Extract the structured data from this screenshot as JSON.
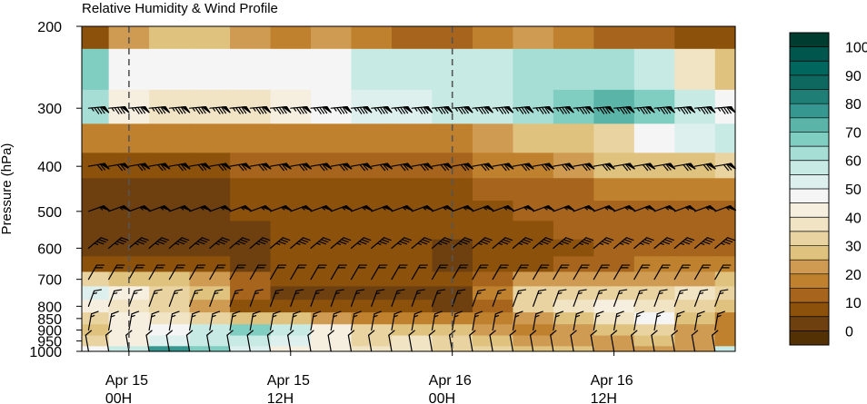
{
  "chart_data": {
    "type": "heatmap",
    "title": "Relative Humidity & Wind Profile",
    "ylabel": "Pressure (hPa)",
    "xlabel": "",
    "y_axis_scale": "log-pressure (inverted)",
    "y_ticks": [
      200,
      300,
      400,
      500,
      600,
      700,
      800,
      850,
      900,
      950,
      1000
    ],
    "x_ticks": [
      {
        "line1": "Apr 15",
        "line2": "00H"
      },
      {
        "line1": "Apr 15",
        "line2": "12H"
      },
      {
        "line1": "Apr 16",
        "line2": "00H"
      },
      {
        "line1": "Apr 16",
        "line2": "12H"
      }
    ],
    "x_range_hours": [
      -3.5,
      45
    ],
    "day_markers_hours": [
      0,
      24
    ],
    "pressure_levels": [
      200,
      250,
      300,
      350,
      400,
      450,
      500,
      550,
      600,
      650,
      700,
      750,
      800,
      850,
      900,
      950,
      1000
    ],
    "time_hours": [
      -3,
      0,
      3,
      6,
      9,
      12,
      15,
      18,
      21,
      24,
      27,
      30,
      33,
      36,
      39,
      42,
      45
    ],
    "rh_percent": [
      [
        5,
        20,
        25,
        25,
        20,
        15,
        20,
        15,
        10,
        10,
        15,
        20,
        15,
        10,
        10,
        5,
        5
      ],
      [
        65,
        45,
        45,
        45,
        45,
        45,
        45,
        55,
        55,
        55,
        55,
        60,
        60,
        60,
        55,
        35,
        25
      ],
      [
        60,
        40,
        35,
        35,
        35,
        40,
        45,
        50,
        50,
        55,
        55,
        60,
        65,
        70,
        65,
        55,
        45
      ],
      [
        15,
        15,
        15,
        15,
        15,
        15,
        15,
        15,
        15,
        15,
        20,
        25,
        25,
        30,
        45,
        50,
        55
      ],
      [
        5,
        5,
        5,
        5,
        10,
        10,
        10,
        10,
        10,
        10,
        15,
        15,
        20,
        25,
        25,
        25,
        30
      ],
      [
        0,
        0,
        0,
        0,
        5,
        5,
        5,
        5,
        5,
        5,
        10,
        10,
        10,
        15,
        15,
        15,
        15
      ],
      [
        0,
        0,
        0,
        0,
        5,
        5,
        5,
        5,
        5,
        5,
        5,
        10,
        10,
        10,
        10,
        10,
        10
      ],
      [
        0,
        0,
        0,
        0,
        0,
        5,
        5,
        5,
        5,
        5,
        5,
        5,
        10,
        10,
        10,
        10,
        10
      ],
      [
        0,
        0,
        0,
        0,
        0,
        5,
        5,
        5,
        5,
        0,
        5,
        5,
        5,
        10,
        10,
        10,
        10
      ],
      [
        5,
        5,
        5,
        5,
        0,
        5,
        5,
        5,
        5,
        0,
        5,
        5,
        10,
        10,
        15,
        15,
        15
      ],
      [
        30,
        25,
        25,
        20,
        10,
        5,
        5,
        5,
        5,
        5,
        10,
        20,
        20,
        20,
        20,
        20,
        25
      ],
      [
        50,
        40,
        30,
        25,
        10,
        0,
        0,
        0,
        0,
        0,
        15,
        30,
        30,
        30,
        30,
        35,
        30
      ],
      [
        40,
        35,
        30,
        20,
        5,
        5,
        5,
        5,
        5,
        0,
        10,
        30,
        35,
        40,
        35,
        30,
        25
      ],
      [
        30,
        40,
        35,
        30,
        25,
        25,
        20,
        15,
        15,
        15,
        15,
        20,
        25,
        35,
        45,
        25,
        15
      ],
      [
        25,
        40,
        45,
        55,
        65,
        55,
        40,
        30,
        25,
        25,
        20,
        15,
        20,
        25,
        30,
        20,
        15
      ],
      [
        30,
        40,
        50,
        55,
        55,
        50,
        40,
        30,
        35,
        30,
        25,
        20,
        20,
        20,
        25,
        20,
        15
      ],
      [
        45,
        55,
        75,
        65,
        50,
        40,
        40,
        35,
        35,
        30,
        30,
        25,
        25,
        20,
        20,
        20,
        55
      ]
    ],
    "colorbar": {
      "min": -5,
      "max": 105,
      "step": 5,
      "tick_labels": [
        0,
        10,
        20,
        30,
        40,
        50,
        60,
        70,
        80,
        90,
        100
      ],
      "colors": [
        "#543005",
        "#6e4010",
        "#8c510a",
        "#a6641c",
        "#bf812d",
        "#cf9a52",
        "#dfc27d",
        "#e9d3a0",
        "#f1e4c4",
        "#f6efe0",
        "#f5f5f5",
        "#ddf0ee",
        "#c7eae5",
        "#a6ddd5",
        "#80cdc1",
        "#5ab4a8",
        "#35978f",
        "#1f7f76",
        "#0f6860",
        "#01665e",
        "#00554d",
        "#003c30"
      ]
    },
    "wind_barb_levels": [
      300,
      400,
      500,
      600,
      700,
      800,
      900,
      1000
    ],
    "wind_barb_times_hours": [
      -3,
      -1.5,
      0,
      1.5,
      3,
      4.5,
      6,
      7.5,
      9,
      10.5,
      12,
      13.5,
      15,
      16.5,
      18,
      19.5,
      21,
      22.5,
      24,
      25.5,
      27,
      28.5,
      30,
      31.5,
      33,
      34.5,
      36,
      37.5,
      39,
      40.5,
      42,
      43.5
    ],
    "wind_barbs": [
      {
        "level": 300,
        "dir_deg": 265,
        "speed_kt": 85
      },
      {
        "level": 400,
        "dir_deg": 260,
        "speed_kt": 70
      },
      {
        "level": 500,
        "dir_deg": 250,
        "speed_kt": 55
      },
      {
        "level": 600,
        "dir_deg": 230,
        "speed_kt": 35
      },
      {
        "level": 700,
        "dir_deg": 210,
        "speed_kt": 20
      },
      {
        "level": 800,
        "dir_deg": 200,
        "speed_kt": 15
      },
      {
        "level": 900,
        "dir_deg": 190,
        "speed_kt": 15
      },
      {
        "level": 1000,
        "dir_deg": 170,
        "speed_kt": 10
      }
    ]
  }
}
